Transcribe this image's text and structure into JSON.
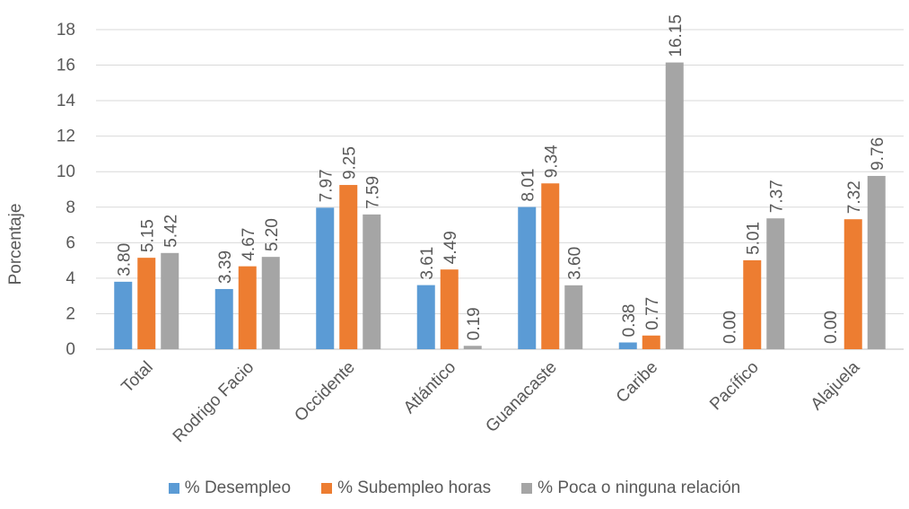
{
  "chart_data": {
    "type": "bar",
    "ylabel": "Porcentaje",
    "xlabel": "",
    "ylim": [
      0,
      18
    ],
    "yticks": [
      0,
      2,
      4,
      6,
      8,
      10,
      12,
      14,
      16,
      18
    ],
    "grid": true,
    "legend_position": "bottom",
    "categories": [
      "Total",
      "Rodrigo Facio",
      "Occidente",
      "Atlántico",
      "Guanacaste",
      "Caribe",
      "Pacífico",
      "Alajuela"
    ],
    "series": [
      {
        "name": "% Desempleo",
        "color": "#5B9BD5",
        "values": [
          3.8,
          3.39,
          7.97,
          3.61,
          8.01,
          0.38,
          0.0,
          0.0
        ],
        "labels": [
          "3.80",
          "3.39",
          "7.97",
          "3.61",
          "8.01",
          "0.38",
          "0.00",
          "0.00"
        ]
      },
      {
        "name": "% Subempleo horas",
        "color": "#ED7D31",
        "values": [
          5.15,
          4.67,
          9.25,
          4.49,
          9.34,
          0.77,
          5.01,
          7.32
        ],
        "labels": [
          "5.15",
          "4.67",
          "9.25",
          "4.49",
          "9.34",
          "0.77",
          "5.01",
          "7.32"
        ]
      },
      {
        "name": "% Poca o ninguna relación",
        "color": "#A5A5A5",
        "values": [
          5.42,
          5.2,
          7.59,
          0.19,
          3.6,
          16.15,
          7.37,
          9.76
        ],
        "labels": [
          "5.42",
          "5.20",
          "7.59",
          "0.19",
          "3.60",
          "16.15",
          "7.37",
          "9.76"
        ]
      }
    ]
  }
}
